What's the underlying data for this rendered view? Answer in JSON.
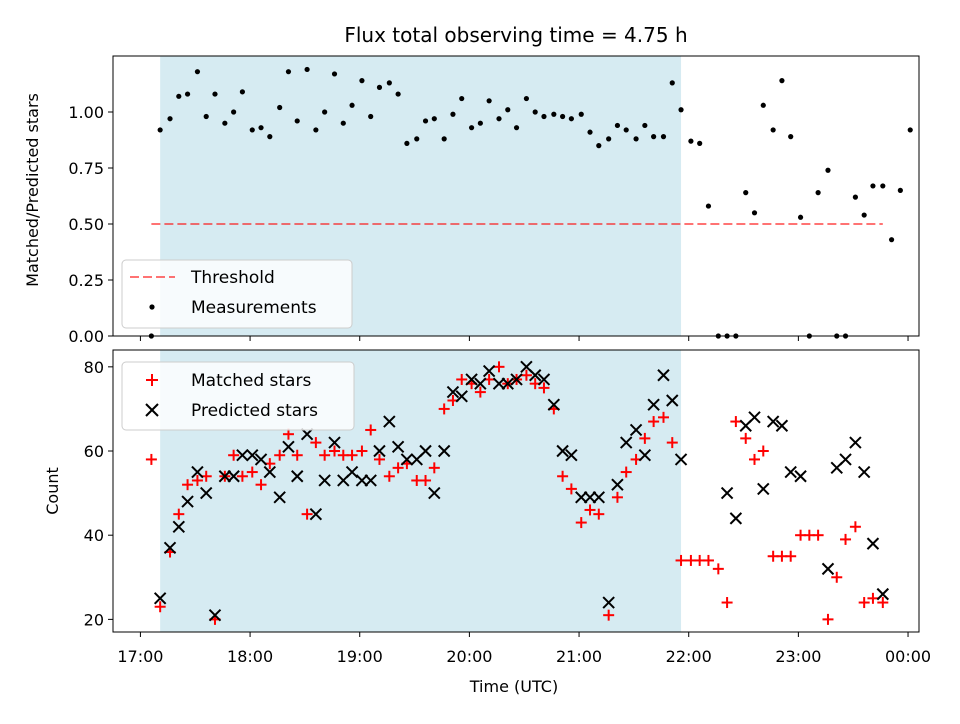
{
  "chart_data": {
    "type": "scatter",
    "title": "Flux total observing time = 4.75 h",
    "xlabel": "Time (UTC)",
    "x_unit": "hours UTC (17 = 17:00, 24 = 00:00 next day)",
    "xlim": [
      16.75,
      24.1
    ],
    "x_ticks": [
      17,
      18,
      19,
      20,
      21,
      22,
      23,
      24
    ],
    "x_tick_labels": [
      "17:00",
      "18:00",
      "19:00",
      "20:00",
      "21:00",
      "22:00",
      "23:00",
      "00:00"
    ],
    "observing_window": [
      17.18,
      21.93
    ],
    "colors": {
      "span": "#add8e6",
      "threshold": "#ff0000",
      "measurements": "#000000",
      "matched": "#ff0000",
      "predicted": "#000000"
    },
    "top": {
      "ylabel": "Matched/Predicted stars",
      "ylim": [
        0,
        1.25
      ],
      "y_ticks": [
        0.0,
        0.25,
        0.5,
        0.75,
        1.0
      ],
      "y_tick_labels": [
        "0.00",
        "0.25",
        "0.50",
        "0.75",
        "1.00"
      ],
      "threshold": {
        "name": "Threshold",
        "value": 0.5,
        "x_range": [
          17.1,
          23.77
        ]
      },
      "measurements_name": "Measurements",
      "legend_position": "lower-left",
      "points": [
        [
          17.1,
          0.0
        ],
        [
          17.18,
          0.92
        ],
        [
          17.27,
          0.97
        ],
        [
          17.35,
          1.07
        ],
        [
          17.43,
          1.08
        ],
        [
          17.52,
          1.18
        ],
        [
          17.6,
          0.98
        ],
        [
          17.68,
          1.08
        ],
        [
          17.77,
          0.95
        ],
        [
          17.85,
          1.0
        ],
        [
          17.93,
          1.09
        ],
        [
          18.02,
          0.92
        ],
        [
          18.1,
          0.93
        ],
        [
          18.18,
          0.89
        ],
        [
          18.27,
          1.02
        ],
        [
          18.35,
          1.18
        ],
        [
          18.43,
          0.96
        ],
        [
          18.52,
          1.19
        ],
        [
          18.6,
          0.92
        ],
        [
          18.68,
          1.0
        ],
        [
          18.77,
          1.17
        ],
        [
          18.85,
          0.95
        ],
        [
          18.93,
          1.03
        ],
        [
          19.02,
          1.14
        ],
        [
          19.1,
          0.98
        ],
        [
          19.18,
          1.11
        ],
        [
          19.27,
          1.13
        ],
        [
          19.35,
          1.08
        ],
        [
          19.43,
          0.86
        ],
        [
          19.52,
          0.88
        ],
        [
          19.6,
          0.96
        ],
        [
          19.68,
          0.97
        ],
        [
          19.77,
          0.88
        ],
        [
          19.85,
          0.99
        ],
        [
          19.93,
          1.06
        ],
        [
          20.02,
          0.93
        ],
        [
          20.1,
          0.95
        ],
        [
          20.18,
          1.05
        ],
        [
          20.27,
          0.97
        ],
        [
          20.35,
          1.01
        ],
        [
          20.43,
          0.93
        ],
        [
          20.52,
          1.06
        ],
        [
          20.6,
          1.0
        ],
        [
          20.68,
          0.98
        ],
        [
          20.77,
          0.99
        ],
        [
          20.85,
          0.98
        ],
        [
          20.93,
          0.97
        ],
        [
          21.02,
          0.99
        ],
        [
          21.1,
          0.91
        ],
        [
          21.18,
          0.85
        ],
        [
          21.27,
          0.88
        ],
        [
          21.35,
          0.94
        ],
        [
          21.43,
          0.92
        ],
        [
          21.52,
          0.88
        ],
        [
          21.6,
          0.94
        ],
        [
          21.68,
          0.89
        ],
        [
          21.77,
          0.89
        ],
        [
          21.85,
          1.13
        ],
        [
          21.93,
          1.01
        ],
        [
          22.02,
          0.87
        ],
        [
          22.1,
          0.86
        ],
        [
          22.18,
          0.58
        ],
        [
          22.27,
          0.0
        ],
        [
          22.35,
          0.0
        ],
        [
          22.43,
          0.0
        ],
        [
          22.52,
          0.64
        ],
        [
          22.6,
          0.55
        ],
        [
          22.68,
          1.03
        ],
        [
          22.77,
          0.92
        ],
        [
          22.85,
          1.14
        ],
        [
          22.93,
          0.89
        ],
        [
          23.02,
          0.53
        ],
        [
          23.1,
          0.0
        ],
        [
          23.18,
          0.64
        ],
        [
          23.27,
          0.74
        ],
        [
          23.35,
          0.0
        ],
        [
          23.43,
          0.0
        ],
        [
          23.52,
          0.62
        ],
        [
          23.6,
          0.54
        ],
        [
          23.68,
          0.67
        ],
        [
          23.77,
          0.67
        ],
        [
          23.85,
          0.43
        ],
        [
          23.93,
          0.65
        ],
        [
          24.02,
          0.92
        ]
      ]
    },
    "bottom": {
      "ylabel": "Count",
      "ylim": [
        17,
        84
      ],
      "y_ticks": [
        20,
        40,
        60,
        80
      ],
      "y_tick_labels": [
        "20",
        "40",
        "60",
        "80"
      ],
      "legend_position": "upper-left",
      "matched": {
        "name": "Matched stars",
        "points": [
          [
            17.1,
            58
          ],
          [
            17.18,
            23
          ],
          [
            17.27,
            36
          ],
          [
            17.35,
            45
          ],
          [
            17.43,
            52
          ],
          [
            17.52,
            53
          ],
          [
            17.6,
            54
          ],
          [
            17.68,
            20
          ],
          [
            17.77,
            54
          ],
          [
            17.85,
            59
          ],
          [
            17.93,
            54
          ],
          [
            18.02,
            55
          ],
          [
            18.1,
            52
          ],
          [
            18.18,
            57
          ],
          [
            18.27,
            59
          ],
          [
            18.35,
            64
          ],
          [
            18.43,
            59
          ],
          [
            18.52,
            45
          ],
          [
            18.6,
            62
          ],
          [
            18.68,
            59
          ],
          [
            18.77,
            60
          ],
          [
            18.85,
            59
          ],
          [
            18.93,
            59
          ],
          [
            19.02,
            60
          ],
          [
            19.1,
            65
          ],
          [
            19.18,
            58
          ],
          [
            19.27,
            54
          ],
          [
            19.35,
            56
          ],
          [
            19.43,
            57
          ],
          [
            19.52,
            53
          ],
          [
            19.6,
            53
          ],
          [
            19.68,
            56
          ],
          [
            19.77,
            70
          ],
          [
            19.85,
            72
          ],
          [
            19.93,
            77
          ],
          [
            20.02,
            76
          ],
          [
            20.1,
            74
          ],
          [
            20.18,
            77
          ],
          [
            20.27,
            80
          ],
          [
            20.35,
            76
          ],
          [
            20.43,
            77
          ],
          [
            20.52,
            78
          ],
          [
            20.6,
            76
          ],
          [
            20.68,
            75
          ],
          [
            20.77,
            70
          ],
          [
            20.85,
            54
          ],
          [
            20.93,
            51
          ],
          [
            21.02,
            43
          ],
          [
            21.1,
            46
          ],
          [
            21.18,
            45
          ],
          [
            21.27,
            21
          ],
          [
            21.35,
            49
          ],
          [
            21.43,
            55
          ],
          [
            21.52,
            58
          ],
          [
            21.6,
            63
          ],
          [
            21.68,
            67
          ],
          [
            21.77,
            68
          ],
          [
            21.85,
            62
          ],
          [
            21.93,
            34
          ],
          [
            22.02,
            34
          ],
          [
            22.1,
            34
          ],
          [
            22.18,
            34
          ],
          [
            22.27,
            32
          ],
          [
            22.35,
            24
          ],
          [
            22.43,
            67
          ],
          [
            22.52,
            63
          ],
          [
            22.6,
            58
          ],
          [
            22.68,
            60
          ],
          [
            22.77,
            35
          ],
          [
            22.85,
            35
          ],
          [
            22.93,
            35
          ],
          [
            23.02,
            40
          ],
          [
            23.1,
            40
          ],
          [
            23.18,
            40
          ],
          [
            23.27,
            20
          ],
          [
            23.35,
            30
          ],
          [
            23.43,
            39
          ],
          [
            23.52,
            42
          ],
          [
            23.6,
            24
          ],
          [
            23.68,
            25
          ],
          [
            23.77,
            24
          ]
        ]
      },
      "predicted": {
        "name": "Predicted stars",
        "points": [
          [
            17.18,
            25
          ],
          [
            17.27,
            37
          ],
          [
            17.35,
            42
          ],
          [
            17.43,
            48
          ],
          [
            17.52,
            55
          ],
          [
            17.6,
            50
          ],
          [
            17.68,
            21
          ],
          [
            17.77,
            54
          ],
          [
            17.85,
            54
          ],
          [
            17.93,
            59
          ],
          [
            18.02,
            59
          ],
          [
            18.1,
            58
          ],
          [
            18.18,
            55
          ],
          [
            18.27,
            49
          ],
          [
            18.35,
            61
          ],
          [
            18.43,
            54
          ],
          [
            18.52,
            64
          ],
          [
            18.6,
            45
          ],
          [
            18.68,
            53
          ],
          [
            18.77,
            62
          ],
          [
            18.85,
            53
          ],
          [
            18.93,
            55
          ],
          [
            19.02,
            53
          ],
          [
            19.1,
            53
          ],
          [
            19.18,
            60
          ],
          [
            19.27,
            67
          ],
          [
            19.35,
            61
          ],
          [
            19.43,
            58
          ],
          [
            19.52,
            58
          ],
          [
            19.6,
            60
          ],
          [
            19.68,
            50
          ],
          [
            19.77,
            60
          ],
          [
            19.85,
            74
          ],
          [
            19.93,
            73
          ],
          [
            20.02,
            77
          ],
          [
            20.1,
            76
          ],
          [
            20.18,
            79
          ],
          [
            20.27,
            76
          ],
          [
            20.35,
            76
          ],
          [
            20.43,
            77
          ],
          [
            20.52,
            80
          ],
          [
            20.6,
            78
          ],
          [
            20.68,
            77
          ],
          [
            20.77,
            71
          ],
          [
            20.85,
            60
          ],
          [
            20.93,
            59
          ],
          [
            21.02,
            49
          ],
          [
            21.1,
            49
          ],
          [
            21.18,
            49
          ],
          [
            21.27,
            24
          ],
          [
            21.35,
            52
          ],
          [
            21.43,
            62
          ],
          [
            21.52,
            65
          ],
          [
            21.6,
            59
          ],
          [
            21.68,
            71
          ],
          [
            21.77,
            78
          ],
          [
            21.85,
            72
          ],
          [
            21.93,
            58
          ],
          [
            22.35,
            50
          ],
          [
            22.43,
            44
          ],
          [
            22.52,
            66
          ],
          [
            22.6,
            68
          ],
          [
            22.68,
            51
          ],
          [
            22.77,
            67
          ],
          [
            22.85,
            66
          ],
          [
            22.93,
            55
          ],
          [
            23.02,
            54
          ],
          [
            23.27,
            32
          ],
          [
            23.35,
            56
          ],
          [
            23.43,
            58
          ],
          [
            23.52,
            62
          ],
          [
            23.6,
            55
          ],
          [
            23.68,
            38
          ],
          [
            23.77,
            26
          ]
        ]
      }
    }
  }
}
